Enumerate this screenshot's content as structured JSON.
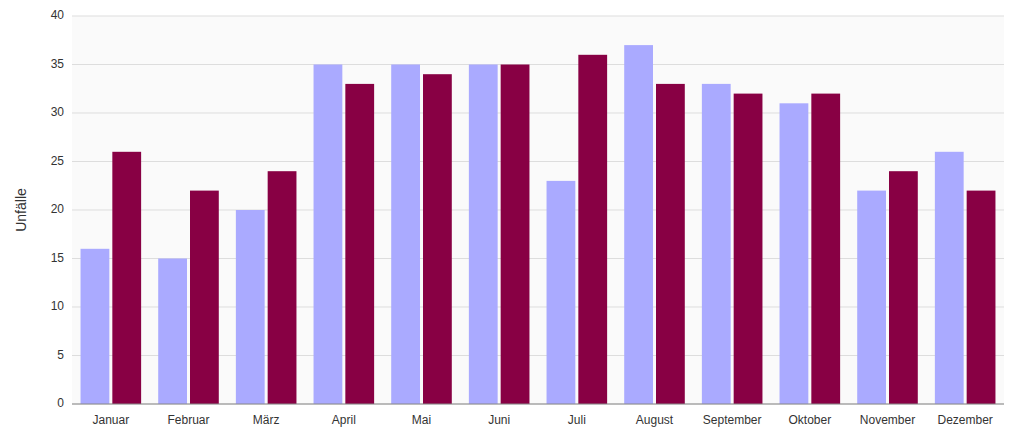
{
  "chart_data": {
    "type": "bar",
    "ylabel": "Unfälle",
    "categories": [
      "Januar",
      "Februar",
      "März",
      "April",
      "Mai",
      "Juni",
      "Juli",
      "August",
      "September",
      "Oktober",
      "November",
      "Dezember"
    ],
    "series": [
      {
        "color": "#aaaaff",
        "values": [
          16,
          15,
          20,
          35,
          35,
          35,
          23,
          37,
          33,
          31,
          22,
          26
        ]
      },
      {
        "color": "#880044",
        "values": [
          26,
          22,
          24,
          33,
          34,
          35,
          36,
          33,
          32,
          32,
          24,
          22
        ]
      }
    ],
    "ylim": [
      0,
      40
    ],
    "yticks": [
      0,
      5,
      10,
      15,
      20,
      25,
      30,
      35,
      40
    ],
    "grid": true
  }
}
